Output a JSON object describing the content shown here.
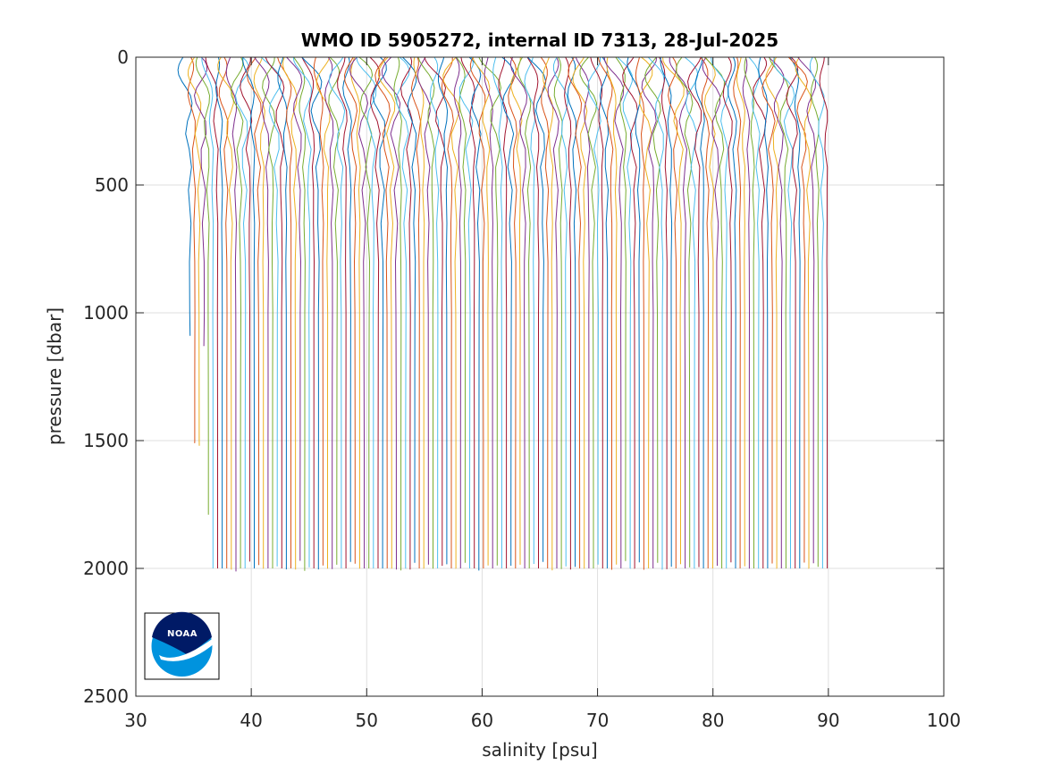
{
  "chart_data": {
    "type": "line",
    "title": "WMO ID 5905272, internal ID 7313, 28-Jul-2025",
    "xlabel": "salinity [psu]",
    "ylabel": "pressure [dbar]",
    "xlim": [
      30,
      100
    ],
    "ylim": [
      0,
      2500
    ],
    "y_reversed": true,
    "grid": true,
    "xticks": [
      "30",
      "40",
      "50",
      "60",
      "70",
      "80",
      "90",
      "100"
    ],
    "yticks": [
      "0",
      "500",
      "1000",
      "1500",
      "2000",
      "2500"
    ],
    "series_colors": [
      "#0072BD",
      "#D95319",
      "#EDB120",
      "#7E2F8E",
      "#77AC30",
      "#4DBEEE",
      "#A2142F"
    ],
    "profile_count": 140,
    "first_profile_deep_salinity": 34.7,
    "last_profile_deep_salinity": 89.9,
    "profile_max_pressure": 2000,
    "short_profiles_max_pressure": [
      1090,
      1510,
      1520,
      1130,
      1790
    ]
  },
  "logo": {
    "text": "NOAA",
    "colors": {
      "dark": "#001a66",
      "light": "#0093de",
      "white": "#ffffff"
    }
  }
}
